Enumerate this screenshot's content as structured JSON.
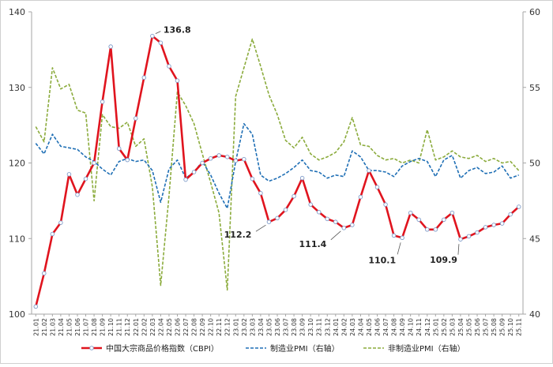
{
  "chart_data": {
    "type": "line",
    "title": "",
    "xlabel": "",
    "ylabel": "",
    "y_left": {
      "range": [
        100,
        140
      ],
      "ticks": [
        100,
        110,
        120,
        130,
        140
      ]
    },
    "y_right": {
      "range": [
        40,
        60
      ],
      "ticks": [
        40,
        45,
        50,
        55,
        60
      ]
    },
    "grid": false,
    "legend_position": "bottom",
    "categories": [
      "21.01",
      "21.02",
      "21.03",
      "21.04",
      "21.05",
      "21.06",
      "21.07",
      "21.08",
      "21.09",
      "21.10",
      "21.11",
      "21.12",
      "22.01",
      "22.02",
      "22.03",
      "22.04",
      "22.05",
      "22.06",
      "22.07",
      "22.08",
      "22.09",
      "22.10",
      "22.11",
      "22.12",
      "23.01",
      "23.02",
      "23.03",
      "23.04",
      "23.05",
      "23.06",
      "23.07",
      "23.08",
      "23.09",
      "23.10",
      "23.11",
      "23.12",
      "24.01",
      "24.02",
      "24.03",
      "24.04",
      "24.05",
      "24.06",
      "24.07",
      "24.08",
      "24.09",
      "24.10",
      "24.11",
      "24.12",
      "25.01",
      "25.02",
      "25.03",
      "25.04",
      "25.05",
      "25.06",
      "25.07",
      "25.08",
      "25.09",
      "25.10",
      "25.11"
    ],
    "series": [
      {
        "name": "中国大宗商品价格指数（CBPI）",
        "axis": "left",
        "color": "#e0141e",
        "style": "solid-markers",
        "values": [
          101.0,
          105.4,
          110.6,
          112.1,
          118.5,
          115.8,
          117.9,
          120.0,
          128.1,
          135.4,
          121.9,
          120.4,
          125.9,
          131.3,
          136.8,
          135.9,
          132.8,
          130.9,
          117.8,
          118.8,
          120.0,
          120.6,
          121.0,
          120.8,
          120.3,
          120.5,
          117.9,
          116.0,
          112.2,
          112.7,
          113.8,
          115.6,
          118.0,
          114.5,
          113.5,
          112.6,
          112.2,
          111.4,
          111.8,
          115.5,
          119.0,
          116.8,
          114.5,
          110.4,
          110.1,
          113.4,
          112.5,
          111.2,
          111.2,
          112.5,
          113.4,
          109.9,
          110.3,
          110.8,
          111.5,
          111.8,
          112.0,
          113.2,
          114.2
        ]
      },
      {
        "name": "制造业PMI（右轴）",
        "axis": "right",
        "color": "#1f6fb5",
        "style": "dashed",
        "values": [
          51.3,
          50.6,
          51.9,
          51.1,
          51.0,
          50.9,
          50.4,
          50.1,
          49.6,
          49.2,
          50.1,
          50.3,
          50.1,
          50.2,
          49.5,
          47.4,
          49.6,
          50.2,
          49.0,
          49.4,
          50.1,
          49.2,
          48.0,
          47.0,
          50.1,
          52.6,
          51.9,
          49.2,
          48.8,
          49.0,
          49.3,
          49.7,
          50.2,
          49.5,
          49.4,
          49.0,
          49.2,
          49.1,
          50.8,
          50.4,
          49.5,
          49.5,
          49.4,
          49.1,
          49.8,
          50.1,
          50.3,
          50.1,
          49.1,
          50.2,
          50.5,
          49.0,
          49.5,
          49.7,
          49.3,
          49.4,
          49.8,
          49.0,
          49.2
        ]
      },
      {
        "name": "非制造业PMI（右轴）",
        "axis": "right",
        "color": "#8bab3c",
        "style": "dashed",
        "values": [
          52.4,
          51.4,
          56.3,
          54.9,
          55.2,
          53.5,
          53.3,
          47.5,
          53.2,
          52.4,
          52.3,
          52.7,
          51.1,
          51.6,
          48.4,
          41.9,
          47.8,
          54.7,
          53.8,
          52.6,
          50.6,
          48.7,
          46.7,
          41.6,
          54.4,
          56.3,
          58.2,
          56.4,
          54.5,
          53.2,
          51.5,
          51.0,
          51.7,
          50.6,
          50.2,
          50.4,
          50.7,
          51.4,
          53.0,
          51.2,
          51.1,
          50.5,
          50.2,
          50.3,
          50.0,
          50.2,
          50.0,
          52.2,
          50.2,
          50.4,
          50.8,
          50.4,
          50.3,
          50.5,
          50.1,
          50.3,
          50.0,
          50.1,
          49.5
        ]
      }
    ],
    "annotations": [
      {
        "text": "136.8",
        "category": "22.03",
        "value": 136.8
      },
      {
        "text": "112.2",
        "category": "23.05",
        "value": 112.2
      },
      {
        "text": "111.4",
        "category": "24.02",
        "value": 111.4
      },
      {
        "text": "110.1",
        "category": "24.09",
        "value": 110.1
      },
      {
        "text": "109.9",
        "category": "25.04",
        "value": 109.9
      }
    ]
  }
}
